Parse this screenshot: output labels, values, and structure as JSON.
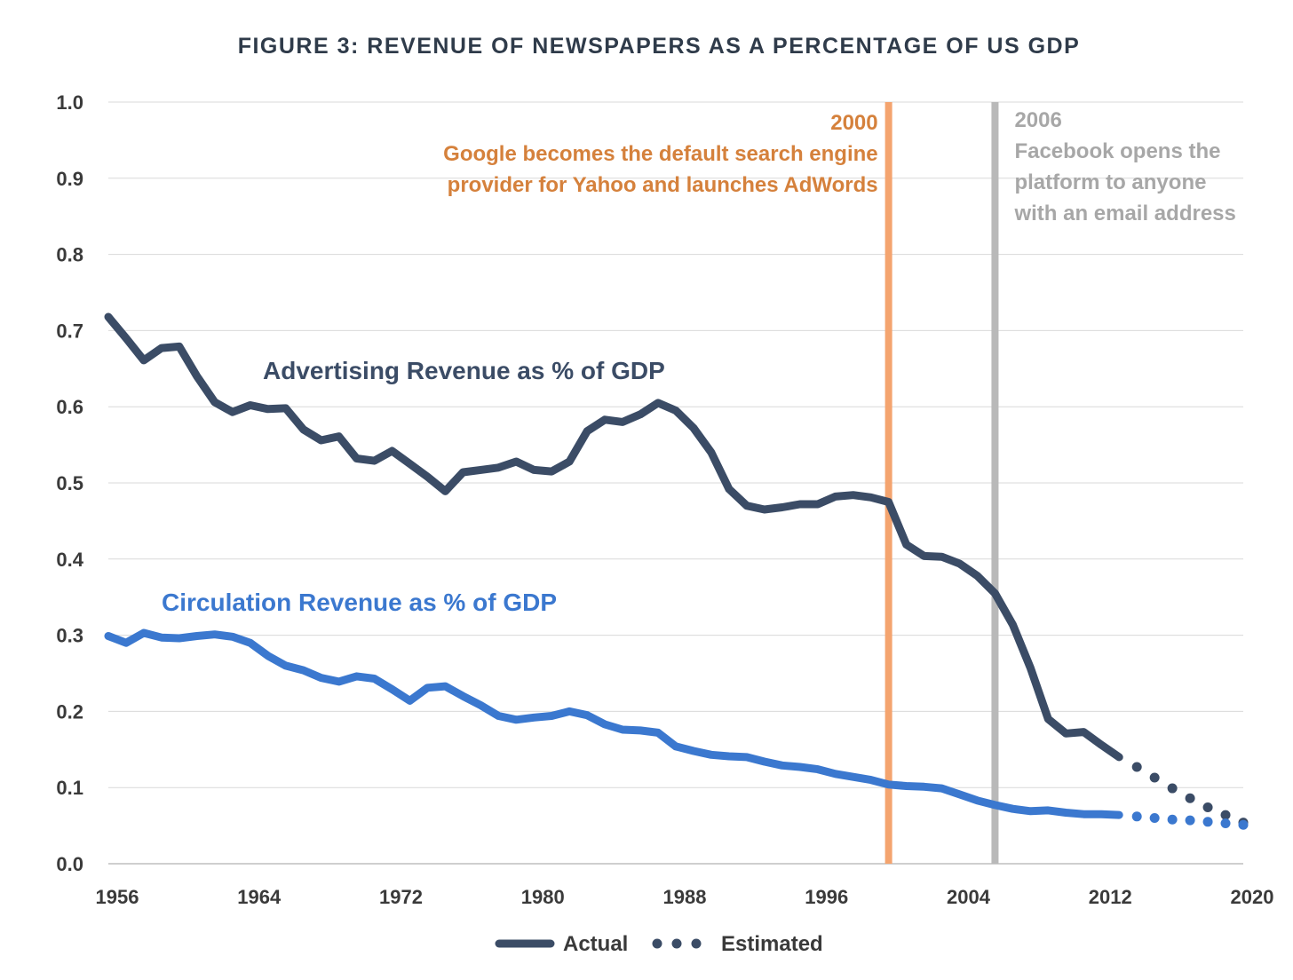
{
  "chart_data": {
    "type": "line",
    "title": "FIGURE 3: REVENUE OF NEWSPAPERS AS A PERCENTAGE OF US GDP",
    "xlabel": "",
    "ylabel": "",
    "xlim": [
      1956,
      2020
    ],
    "ylim": [
      0,
      1.0
    ],
    "x_ticks": [
      "1956",
      "1964",
      "1972",
      "1980",
      "1988",
      "1996",
      "2004",
      "2012",
      "2020"
    ],
    "y_ticks": [
      "0.0",
      "0.1",
      "0.2",
      "0.3",
      "0.4",
      "0.5",
      "0.6",
      "0.7",
      "0.8",
      "0.9",
      "1.0"
    ],
    "grid": true,
    "series": [
      {
        "name": "Advertising Revenue as % of GDP",
        "color": "#3b4c66",
        "actual": {
          "x": [
            1956,
            1957,
            1958,
            1959,
            1960,
            1961,
            1962,
            1963,
            1964,
            1965,
            1966,
            1967,
            1968,
            1969,
            1970,
            1971,
            1972,
            1973,
            1974,
            1975,
            1976,
            1977,
            1978,
            1979,
            1980,
            1981,
            1982,
            1983,
            1984,
            1985,
            1986,
            1987,
            1988,
            1989,
            1990,
            1991,
            1992,
            1993,
            1994,
            1995,
            1996,
            1997,
            1998,
            1999,
            2000,
            2001,
            2002,
            2003,
            2004,
            2005,
            2006,
            2007,
            2008,
            2009,
            2010,
            2011,
            2012,
            2013
          ],
          "y": [
            0.718,
            0.69,
            0.661,
            0.677,
            0.679,
            0.64,
            0.606,
            0.593,
            0.602,
            0.597,
            0.598,
            0.57,
            0.556,
            0.561,
            0.532,
            0.529,
            0.542,
            0.525,
            0.508,
            0.489,
            0.514,
            0.517,
            0.52,
            0.528,
            0.517,
            0.515,
            0.528,
            0.568,
            0.583,
            0.58,
            0.59,
            0.605,
            0.595,
            0.572,
            0.54,
            0.492,
            0.47,
            0.465,
            0.468,
            0.472,
            0.472,
            0.482,
            0.484,
            0.481,
            0.475,
            0.419,
            0.404,
            0.403,
            0.394,
            0.378,
            0.355,
            0.314,
            0.257,
            0.19,
            0.171,
            0.173,
            0.156,
            0.14
          ]
        },
        "estimated": {
          "x": [
            2013,
            2014,
            2015,
            2016,
            2017,
            2018,
            2019,
            2020
          ],
          "y": [
            0.14,
            0.127,
            0.113,
            0.099,
            0.086,
            0.074,
            0.064,
            0.054
          ]
        }
      },
      {
        "name": "Circulation Revenue as % of GDP",
        "color": "#3b78cf",
        "actual": {
          "x": [
            1956,
            1957,
            1958,
            1959,
            1960,
            1961,
            1962,
            1963,
            1964,
            1965,
            1966,
            1967,
            1968,
            1969,
            1970,
            1971,
            1972,
            1973,
            1974,
            1975,
            1976,
            1977,
            1978,
            1979,
            1980,
            1981,
            1982,
            1983,
            1984,
            1985,
            1986,
            1987,
            1988,
            1989,
            1990,
            1991,
            1992,
            1993,
            1994,
            1995,
            1996,
            1997,
            1998,
            1999,
            2000,
            2001,
            2002,
            2003,
            2004,
            2005,
            2006,
            2007,
            2008,
            2009,
            2010,
            2011,
            2012,
            2013
          ],
          "y": [
            0.299,
            0.29,
            0.303,
            0.297,
            0.296,
            0.299,
            0.301,
            0.298,
            0.29,
            0.273,
            0.26,
            0.254,
            0.244,
            0.239,
            0.246,
            0.243,
            0.229,
            0.214,
            0.231,
            0.233,
            0.22,
            0.208,
            0.194,
            0.189,
            0.192,
            0.194,
            0.2,
            0.195,
            0.183,
            0.176,
            0.175,
            0.172,
            0.154,
            0.148,
            0.143,
            0.141,
            0.14,
            0.134,
            0.129,
            0.127,
            0.124,
            0.118,
            0.114,
            0.11,
            0.104,
            0.102,
            0.101,
            0.099,
            0.091,
            0.083,
            0.077,
            0.072,
            0.069,
            0.07,
            0.067,
            0.065,
            0.065,
            0.064
          ]
        },
        "estimated": {
          "x": [
            2013,
            2014,
            2015,
            2016,
            2017,
            2018,
            2019,
            2020
          ],
          "y": [
            0.064,
            0.062,
            0.06,
            0.058,
            0.057,
            0.055,
            0.053,
            0.051
          ]
        }
      }
    ],
    "annotations": [
      {
        "year": 2000,
        "color": "#f4a46f",
        "text_color": "#d5813c",
        "lines": [
          "2000",
          "Google becomes the default search engine",
          "provider for Yahoo and launches AdWords"
        ]
      },
      {
        "year": 2006,
        "color": "#b9b9b9",
        "text_color": "#a7a7a7",
        "lines": [
          "2006",
          "Facebook opens the",
          "platform to anyone",
          "with an email address"
        ]
      }
    ],
    "legend": {
      "placement": "bottom-center",
      "items": [
        {
          "label": "Actual",
          "style": "solid"
        },
        {
          "label": "Estimated",
          "style": "dotted"
        }
      ]
    }
  }
}
